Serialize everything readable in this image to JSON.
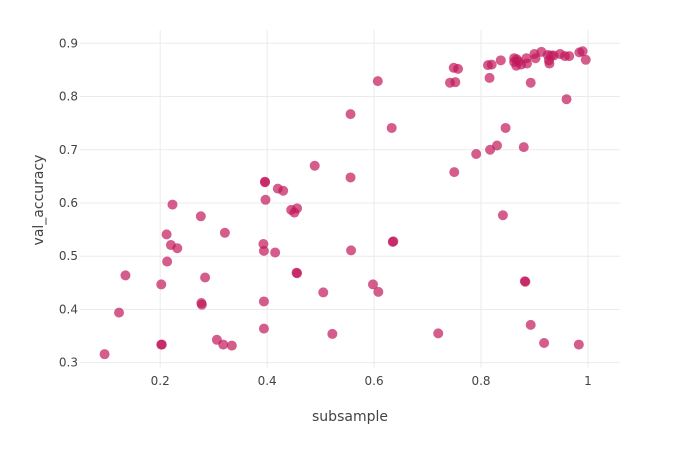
{
  "chart_data": {
    "type": "scatter",
    "title": "",
    "xlabel": "subsample",
    "ylabel": "val_accuracy",
    "xlim": [
      0.05,
      1.06
    ],
    "ylim": [
      0.29,
      0.925
    ],
    "xticks": [
      0.2,
      0.4,
      0.6,
      0.8,
      1
    ],
    "xtick_labels": [
      "0.2",
      "0.4",
      "0.6",
      "0.8",
      "1"
    ],
    "yticks": [
      0.3,
      0.4,
      0.5,
      0.6,
      0.7,
      0.8,
      0.9
    ],
    "ytick_labels": [
      "0.3",
      "0.4",
      "0.5",
      "0.6",
      "0.7",
      "0.8",
      "0.9"
    ],
    "grid": true,
    "legend": "none",
    "marker_color": "#c2185b",
    "series": [
      {
        "points": [
          [
            0.096,
            0.316
          ],
          [
            0.123,
            0.394
          ],
          [
            0.135,
            0.464
          ],
          [
            0.202,
            0.447
          ],
          [
            0.202,
            0.334
          ],
          [
            0.203,
            0.334
          ],
          [
            0.212,
            0.541
          ],
          [
            0.213,
            0.49
          ],
          [
            0.22,
            0.521
          ],
          [
            0.223,
            0.597
          ],
          [
            0.232,
            0.515
          ],
          [
            0.276,
            0.575
          ],
          [
            0.277,
            0.412
          ],
          [
            0.278,
            0.409
          ],
          [
            0.284,
            0.46
          ],
          [
            0.306,
            0.343
          ],
          [
            0.318,
            0.334
          ],
          [
            0.321,
            0.544
          ],
          [
            0.334,
            0.332
          ],
          [
            0.393,
            0.523
          ],
          [
            0.394,
            0.51
          ],
          [
            0.394,
            0.415
          ],
          [
            0.394,
            0.364
          ],
          [
            0.396,
            0.639
          ],
          [
            0.396,
            0.64
          ],
          [
            0.397,
            0.606
          ],
          [
            0.415,
            0.507
          ],
          [
            0.42,
            0.627
          ],
          [
            0.43,
            0.623
          ],
          [
            0.445,
            0.587
          ],
          [
            0.451,
            0.582
          ],
          [
            0.456,
            0.59
          ],
          [
            0.455,
            0.469
          ],
          [
            0.456,
            0.468
          ],
          [
            0.489,
            0.67
          ],
          [
            0.505,
            0.432
          ],
          [
            0.522,
            0.354
          ],
          [
            0.556,
            0.767
          ],
          [
            0.556,
            0.648
          ],
          [
            0.557,
            0.511
          ],
          [
            0.598,
            0.447
          ],
          [
            0.607,
            0.829
          ],
          [
            0.608,
            0.433
          ],
          [
            0.633,
            0.741
          ],
          [
            0.635,
            0.527
          ],
          [
            0.636,
            0.528
          ],
          [
            0.72,
            0.355
          ],
          [
            0.742,
            0.826
          ],
          [
            0.749,
            0.854
          ],
          [
            0.75,
            0.658
          ],
          [
            0.752,
            0.827
          ],
          [
            0.757,
            0.852
          ],
          [
            0.791,
            0.692
          ],
          [
            0.813,
            0.859
          ],
          [
            0.816,
            0.835
          ],
          [
            0.817,
            0.7
          ],
          [
            0.82,
            0.86
          ],
          [
            0.83,
            0.708
          ],
          [
            0.837,
            0.868
          ],
          [
            0.841,
            0.577
          ],
          [
            0.846,
            0.741
          ],
          [
            0.862,
            0.865
          ],
          [
            0.862,
            0.872
          ],
          [
            0.866,
            0.858
          ],
          [
            0.867,
            0.87
          ],
          [
            0.87,
            0.866
          ],
          [
            0.875,
            0.86
          ],
          [
            0.88,
            0.705
          ],
          [
            0.882,
            0.453
          ],
          [
            0.883,
            0.452
          ],
          [
            0.885,
            0.872
          ],
          [
            0.886,
            0.862
          ],
          [
            0.893,
            0.371
          ],
          [
            0.893,
            0.826
          ],
          [
            0.9,
            0.88
          ],
          [
            0.902,
            0.872
          ],
          [
            0.913,
            0.884
          ],
          [
            0.918,
            0.337
          ],
          [
            0.925,
            0.878
          ],
          [
            0.927,
            0.868
          ],
          [
            0.928,
            0.862
          ],
          [
            0.931,
            0.877
          ],
          [
            0.936,
            0.877
          ],
          [
            0.948,
            0.88
          ],
          [
            0.957,
            0.876
          ],
          [
            0.96,
            0.795
          ],
          [
            0.965,
            0.876
          ],
          [
            0.983,
            0.334
          ],
          [
            0.984,
            0.883
          ],
          [
            0.99,
            0.885
          ],
          [
            0.996,
            0.869
          ]
        ]
      }
    ]
  }
}
